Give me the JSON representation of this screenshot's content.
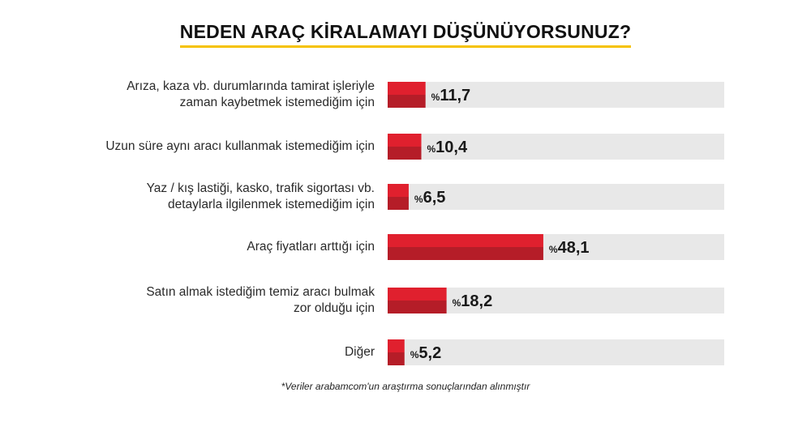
{
  "title": "NEDEN ARAÇ KİRALAMAYI DÜŞÜNÜYORSUNUZ?",
  "footnote": "*Veriler arabamcom'un araştırma sonuçlarından alınmıştır",
  "colors": {
    "bar": "#e0202e",
    "bar_dark": "#b51d28",
    "track": "#e8e8e8",
    "accent": "#f5c200"
  },
  "chart_data": {
    "type": "bar",
    "orientation": "horizontal",
    "title": "NEDEN ARAÇ KİRALAMAYI DÜŞÜNÜYORSUNUZ?",
    "categories": [
      [
        "Arıza, kaza vb. durumlarında tamirat işleriyle",
        "zaman kaybetmek istemediğim için"
      ],
      [
        "Uzun süre aynı aracı kullanmak istemediğim için"
      ],
      [
        "Yaz / kış lastiği, kasko, trafik sigortası vb.",
        "detaylarla ilgilenmek istemediğim için"
      ],
      [
        "Araç fiyatları arttığı için"
      ],
      [
        "Satın almak istediğim temiz aracı bulmak",
        "zor olduğu için"
      ],
      [
        "Diğer"
      ]
    ],
    "values": [
      11.7,
      10.4,
      6.5,
      48.1,
      18.2,
      5.2
    ],
    "value_labels": [
      "11,7",
      "10,4",
      "6,5",
      "48,1",
      "18,2",
      "5,2"
    ],
    "value_prefix": "%",
    "xlim": [
      0,
      100
    ],
    "grid": false,
    "legend": "none"
  }
}
